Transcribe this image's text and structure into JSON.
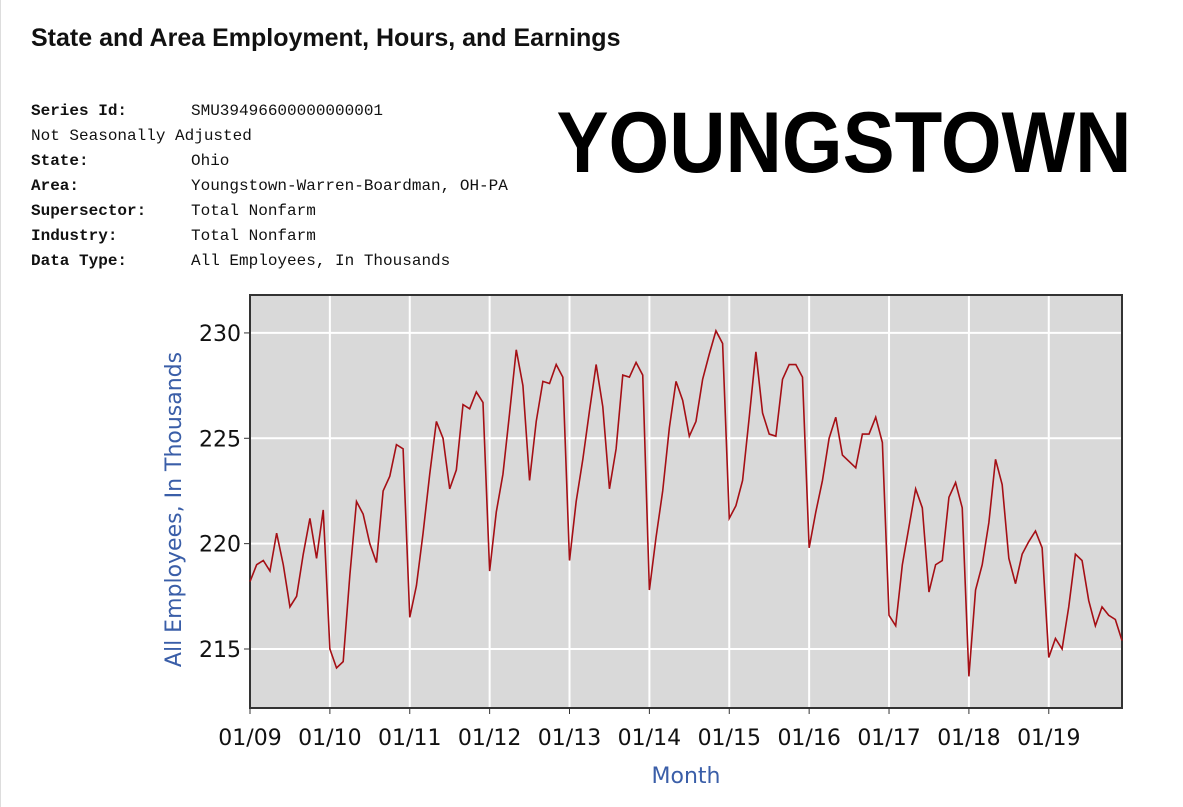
{
  "header": {
    "title": "State and Area Employment, Hours, and Earnings",
    "lines": [
      {
        "label": "Series Id:",
        "value": "SMU39496600000000001"
      },
      {
        "text": "Not Seasonally Adjusted"
      },
      {
        "label": "State:",
        "value": "Ohio"
      },
      {
        "label": "Area:",
        "value": "Youngstown-Warren-Boardman, OH-PA"
      },
      {
        "label": "Supersector:",
        "value": "Total Nonfarm"
      },
      {
        "label": "Industry:",
        "value": "Total Nonfarm"
      },
      {
        "label": "Data Type:",
        "value": "All Employees, In Thousands"
      }
    ],
    "stamp": "YOUNGSTOWN"
  },
  "chart_data": {
    "type": "line",
    "xlabel": "Month",
    "ylabel": "All Employees, In Thousands",
    "color": "#a50f15",
    "ylim": [
      212.2,
      231.8
    ],
    "yticks": [
      215,
      220,
      225,
      230
    ],
    "grid": true,
    "categories": [
      "01/09",
      null,
      null,
      null,
      null,
      null,
      null,
      null,
      null,
      null,
      null,
      null,
      "01/10",
      null,
      null,
      null,
      null,
      null,
      null,
      null,
      null,
      null,
      null,
      null,
      "01/11",
      null,
      null,
      null,
      null,
      null,
      null,
      null,
      null,
      null,
      null,
      null,
      "01/12",
      null,
      null,
      null,
      null,
      null,
      null,
      null,
      null,
      null,
      null,
      null,
      "01/13",
      null,
      null,
      null,
      null,
      null,
      null,
      null,
      null,
      null,
      null,
      null,
      "01/14",
      null,
      null,
      null,
      null,
      null,
      null,
      null,
      null,
      null,
      null,
      null,
      "01/15",
      null,
      null,
      null,
      null,
      null,
      null,
      null,
      null,
      null,
      null,
      null,
      "01/16",
      null,
      null,
      null,
      null,
      null,
      null,
      null,
      null,
      null,
      null,
      null,
      "01/17",
      null,
      null,
      null,
      null,
      null,
      null,
      null,
      null,
      null,
      null,
      null,
      "01/18",
      null,
      null,
      null,
      null,
      null,
      null,
      null,
      null,
      null,
      null,
      null,
      "01/19",
      null,
      null,
      null,
      null,
      null,
      null,
      null,
      null,
      null,
      null,
      null
    ],
    "values": [
      218.2,
      219,
      219.2,
      218.7,
      220.5,
      219,
      217,
      217.5,
      219.5,
      221.2,
      219.3,
      221.6,
      215,
      214.1,
      214.4,
      218.5,
      222,
      221.4,
      220,
      219.1,
      222.5,
      223.2,
      224.7,
      224.5,
      216.5,
      218,
      220.5,
      223.3,
      225.8,
      225,
      222.6,
      223.5,
      226.6,
      226.4,
      227.2,
      226.7,
      218.7,
      221.5,
      223.3,
      226.2,
      229.2,
      227.5,
      223,
      225.8,
      227.7,
      227.6,
      228.5,
      227.9,
      219.2,
      222,
      224,
      226.3,
      228.5,
      226.5,
      222.6,
      224.5,
      228,
      227.9,
      228.6,
      228,
      217.8,
      220.3,
      222.5,
      225.5,
      227.7,
      226.8,
      225.1,
      225.8,
      227.8,
      229,
      230.1,
      229.5,
      221.2,
      221.8,
      223,
      226,
      229.1,
      226.2,
      225.2,
      225.1,
      227.8,
      228.5,
      228.5,
      227.9,
      219.8,
      221.5,
      223,
      225,
      226,
      224.2,
      223.9,
      223.6,
      225.2,
      225.2,
      226,
      224.8,
      216.6,
      216.1,
      219,
      220.8,
      222.6,
      221.7,
      217.7,
      219,
      219.2,
      222.2,
      222.9,
      221.7,
      213.7,
      217.8,
      219,
      221,
      224,
      222.8,
      219.3,
      218.1,
      219.5,
      220.1,
      220.6,
      219.8,
      214.6,
      215.5,
      215,
      217,
      219.5,
      219.2,
      217.3,
      216.1,
      217,
      216.6,
      216.4,
      215.4
    ]
  }
}
